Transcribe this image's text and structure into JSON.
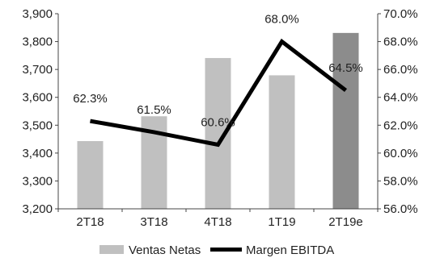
{
  "chart_data": {
    "type": "bar",
    "categories": [
      "2T18",
      "3T18",
      "4T18",
      "1T19",
      "2T19e"
    ],
    "series": [
      {
        "name": "Ventas Netas",
        "type": "bar",
        "axis": "left",
        "values": [
          3443,
          3532,
          3741,
          3679,
          3831
        ],
        "colors": [
          "#c0c0c0",
          "#c0c0c0",
          "#c0c0c0",
          "#c0c0c0",
          "#8c8c8c"
        ]
      },
      {
        "name": "Margen EBITDA",
        "type": "line",
        "axis": "right",
        "values": [
          62.3,
          61.5,
          60.6,
          68.0,
          64.5
        ],
        "labels": [
          "62.3%",
          "61.5%",
          "60.6%",
          "68.0%",
          "64.5%"
        ],
        "color": "#000000"
      }
    ],
    "y_left": {
      "ylim": [
        3200,
        3900
      ],
      "ticks": [
        "3,200",
        "3,300",
        "3,400",
        "3,500",
        "3,600",
        "3,700",
        "3,800",
        "3,900"
      ]
    },
    "y_right": {
      "ylim": [
        56.0,
        70.0
      ],
      "ticks": [
        "56.0%",
        "58.0%",
        "60.0%",
        "62.0%",
        "64.0%",
        "66.0%",
        "68.0%",
        "70.0%"
      ]
    },
    "legend": {
      "position": "bottom",
      "entries": [
        "Ventas Netas",
        "Margen EBITDA"
      ]
    },
    "grid": false
  }
}
